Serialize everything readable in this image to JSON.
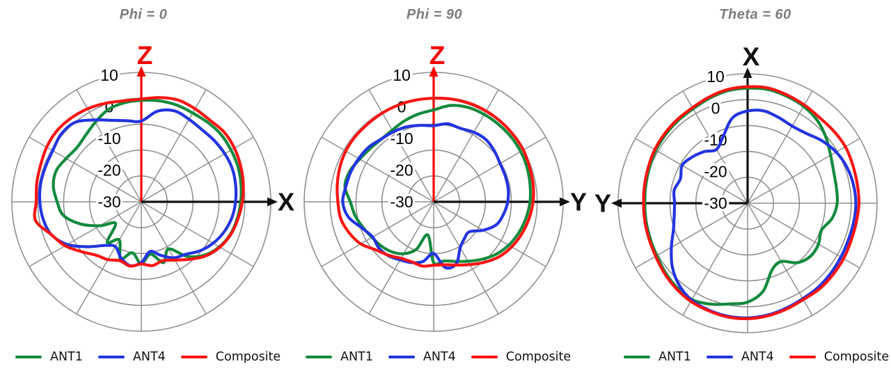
{
  "page": {
    "background": "#ffffff"
  },
  "colors": {
    "ant1": "#128a3c",
    "ant4": "#2334e0",
    "composite": "#f81412",
    "grid": "#8f8f8f",
    "tick_text": "#000000",
    "title_text": "#7c7c7c",
    "z_axis": "#f40000",
    "black_axis": "#111111"
  },
  "legend": {
    "items": [
      {
        "label": "ANT1",
        "color": "#128a3c"
      },
      {
        "label": "ANT4",
        "color": "#2334e0"
      },
      {
        "label": "Composite",
        "color": "#f81412"
      }
    ]
  },
  "chart_data": [
    {
      "type": "line",
      "subtype": "polar-radiation-pattern",
      "title": "Phi = 0",
      "angle_unit": "deg",
      "angle_start": "top",
      "angle_direction": "clockwise",
      "angle_step": 10,
      "rlim": [
        -40,
        10
      ],
      "radial_ticks": [
        10,
        0,
        -10,
        -20,
        -30
      ],
      "grid": true,
      "spoke_step_deg": 30,
      "vertical_axis": {
        "label": "Z",
        "color": "#f40000",
        "direction": "up"
      },
      "horizontal_axis": {
        "label": "X",
        "color": "#111111",
        "direction": "right"
      },
      "series": [
        {
          "name": "ANT1",
          "color": "#128a3c",
          "values": [
            -0.8,
            -0.4,
            -0.2,
            -0.4,
            0.0,
            0.3,
            0.0,
            -0.3,
            -0.9,
            -1.6,
            -2.4,
            -3.4,
            -5.2,
            -8.0,
            -12.5,
            -19.0,
            -15.0,
            -19.5,
            -16.0,
            -20.0,
            -16.5,
            -23.0,
            -19.5,
            -27.0,
            -21.5,
            -15.0,
            -9.5,
            -7.5,
            -5.5,
            -5.0,
            -6.5,
            -7.5,
            -6.5,
            -4.5,
            -2.2,
            -1.2
          ]
        },
        {
          "name": "ANT4",
          "color": "#2334e0",
          "values": [
            -8.8,
            -4.5,
            -2.6,
            -3.2,
            -3.6,
            -3.2,
            -2.8,
            -2.6,
            -3.0,
            -3.6,
            -4.5,
            -6.0,
            -8.0,
            -10.5,
            -13.5,
            -15.0,
            -18.0,
            -20.5,
            -16.5,
            -15.0,
            -17.0,
            -20.0,
            -18.0,
            -13.0,
            -7.0,
            -3.0,
            -1.5,
            -0.8,
            -0.5,
            -0.6,
            -0.5,
            0.5,
            0.0,
            -3.5,
            -6.5,
            -8.2
          ]
        },
        {
          "name": "Composite",
          "color": "#f81412",
          "values": [
            -0.3,
            0.9,
            1.8,
            1.5,
            1.2,
            1.8,
            1.5,
            0.8,
            0.0,
            -1.0,
            -2.1,
            -3.2,
            -5.0,
            -7.5,
            -11.0,
            -14.0,
            -15.8,
            -15.0,
            -16.0,
            -14.8,
            -15.8,
            -14.2,
            -13.0,
            -10.0,
            -6.0,
            -3.0,
            1.5,
            0.6,
            1.0,
            1.4,
            2.2,
            2.6,
            2.2,
            1.5,
            0.5,
            -0.4
          ]
        }
      ]
    },
    {
      "type": "line",
      "subtype": "polar-radiation-pattern",
      "title": "Phi = 90",
      "angle_unit": "deg",
      "angle_start": "top",
      "angle_direction": "clockwise",
      "angle_step": 10,
      "rlim": [
        -40,
        10
      ],
      "radial_ticks": [
        10,
        0,
        -10,
        -20,
        -30
      ],
      "grid": true,
      "spoke_step_deg": 30,
      "vertical_axis": {
        "label": "Z",
        "color": "#f40000",
        "direction": "up"
      },
      "horizontal_axis": {
        "label": "Y",
        "color": "#111111",
        "direction": "right"
      },
      "series": [
        {
          "name": "ANT1",
          "color": "#128a3c",
          "values": [
            -4.5,
            -2.2,
            -1.2,
            -1.0,
            -1.0,
            -1.0,
            -1.2,
            -1.6,
            -2.2,
            -2.8,
            -3.8,
            -5.0,
            -6.5,
            -8.5,
            -11.0,
            -13.5,
            -15.5,
            -16.8,
            -16.5,
            -27.0,
            -20.5,
            -16.8,
            -14.8,
            -13.5,
            -12.5,
            -11.0,
            -9.2,
            -7.8,
            -5.2,
            -5.5,
            -7.0,
            -8.0,
            -8.5,
            -8.0,
            -6.8,
            -5.6
          ]
        },
        {
          "name": "ANT4",
          "color": "#2334e0",
          "values": [
            -10.6,
            -9.4,
            -9.8,
            -9.0,
            -8.6,
            -9.4,
            -10.4,
            -10.6,
            -10.8,
            -11.4,
            -12.6,
            -14.2,
            -18.0,
            -22.0,
            -21.5,
            -19.5,
            -14.5,
            -14.2,
            -20.0,
            -16.6,
            -15.0,
            -14.1,
            -12.8,
            -12.3,
            -12.8,
            -10.5,
            -6.5,
            -4.9,
            -5.6,
            -6.0,
            -6.6,
            -7.2,
            -8.4,
            -8.8,
            -9.2,
            -10.0
          ]
        },
        {
          "name": "Composite",
          "color": "#f81412",
          "values": [
            0.0,
            0.3,
            0.5,
            0.5,
            0.4,
            0.2,
            0.0,
            -0.6,
            -1.0,
            -1.6,
            -2.6,
            -3.8,
            -5.2,
            -7.0,
            -9.5,
            -12.0,
            -14.0,
            -15.3,
            -15.5,
            -14.8,
            -15.3,
            -14.8,
            -13.0,
            -11.0,
            -7.5,
            -5.2,
            -3.5,
            -3.0,
            -2.2,
            -1.4,
            -0.8,
            -0.6,
            -0.6,
            -0.4,
            -0.2,
            -0.1
          ]
        }
      ]
    },
    {
      "type": "line",
      "subtype": "polar-radiation-pattern",
      "title": "Theta = 60",
      "angle_unit": "deg",
      "angle_start": "top",
      "angle_direction": "clockwise",
      "angle_step": 10,
      "rlim": [
        -40,
        10
      ],
      "radial_ticks": [
        10,
        0,
        -10,
        -20,
        -30
      ],
      "grid": true,
      "spoke_step_deg": 30,
      "vertical_axis": {
        "label": "X",
        "color": "#111111",
        "direction": "up"
      },
      "horizontal_axis": {
        "label": "Y",
        "color": "#111111",
        "direction": "left"
      },
      "series": [
        {
          "name": "ANT1",
          "color": "#128a3c",
          "values": [
            4.4,
            4.6,
            4.0,
            3.2,
            1.8,
            -0.5,
            -3.0,
            -4.6,
            -5.2,
            -5.4,
            -6.8,
            -9.6,
            -8.4,
            -8.2,
            -10.0,
            -14.0,
            -12.5,
            -5.5,
            -1.8,
            -0.5,
            1.5,
            3.0,
            2.5,
            1.5,
            0.5,
            0.0,
            -0.2,
            -0.3,
            -0.1,
            0.3,
            0.9,
            1.3,
            1.7,
            2.1,
            3.1,
            4.1
          ]
        },
        {
          "name": "ANT4",
          "color": "#2334e0",
          "values": [
            -4.4,
            -3.8,
            -4.8,
            -5.6,
            -4.8,
            -2.5,
            -0.5,
            0.8,
            1.5,
            1.8,
            1.6,
            1.4,
            1.6,
            2.0,
            2.4,
            2.6,
            3.2,
            3.9,
            4.3,
            4.3,
            3.9,
            3.2,
            1.2,
            -2.0,
            -6.0,
            -9.5,
            -11.2,
            -11.8,
            -11.2,
            -12.4,
            -10.8,
            -12.2,
            -14.0,
            -16.0,
            -12.5,
            -6.5
          ]
        },
        {
          "name": "Composite",
          "color": "#f81412",
          "values": [
            5.0,
            5.2,
            4.5,
            3.8,
            3.2,
            3.4,
            3.6,
            3.2,
            3.0,
            3.0,
            2.6,
            2.5,
            2.8,
            3.0,
            3.2,
            3.0,
            3.6,
            4.2,
            4.6,
            4.6,
            4.2,
            3.8,
            3.0,
            2.0,
            1.0,
            0.5,
            0.3,
            0.2,
            0.4,
            0.8,
            1.4,
            1.8,
            2.2,
            2.6,
            3.6,
            4.6
          ]
        }
      ]
    }
  ]
}
